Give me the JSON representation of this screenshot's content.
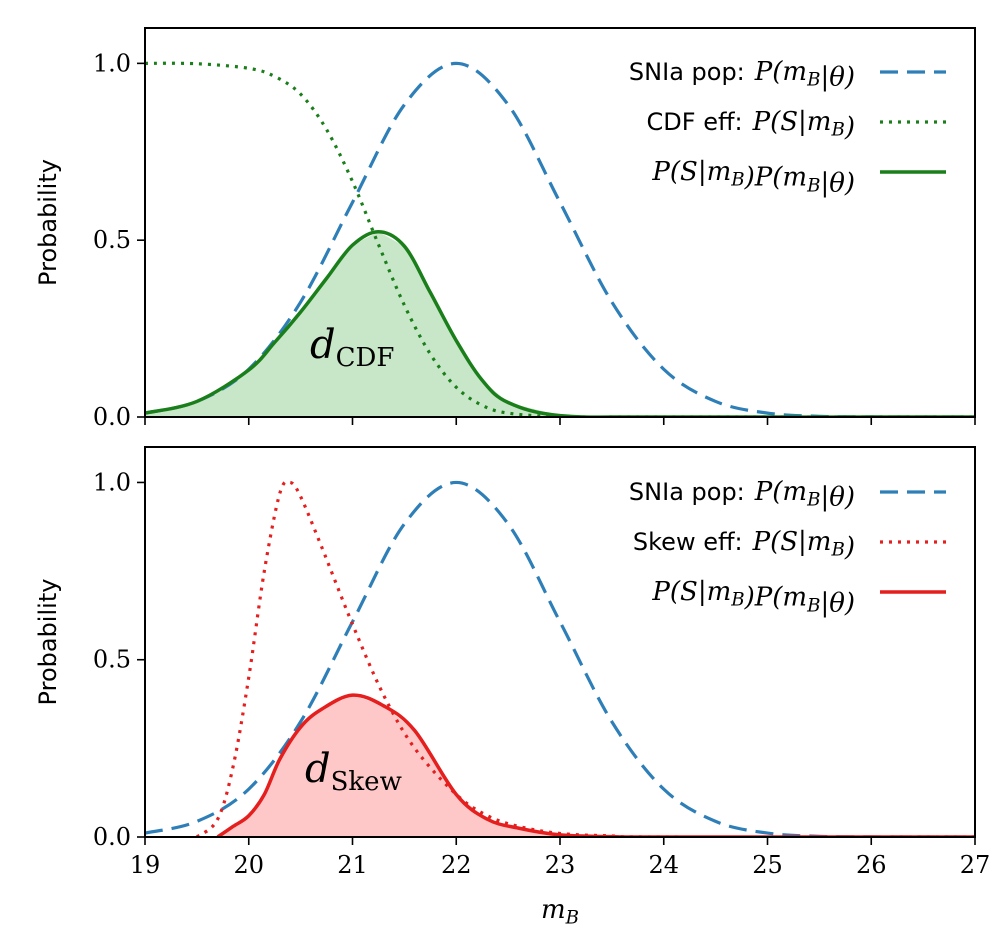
{
  "colors": {
    "population": "#2e7fb8",
    "cdf": "#1a7f1a",
    "cdf_fill": "#c8e6c8",
    "skew": "#e51e1e",
    "skew_fill": "#ffc8c8"
  },
  "chart_data": [
    {
      "type": "area",
      "panel": "top",
      "xlim": [
        19,
        27
      ],
      "ylim": [
        0,
        1.1
      ],
      "ylabel": "Probability",
      "yticks": [
        "0.0",
        "0.5",
        "1.0"
      ],
      "annotation": "d",
      "annotation_sub": "CDF",
      "legend": [
        {
          "series": "population",
          "text": "SNIa pop:",
          "math": "P(m_B|θ)",
          "style": "dashed"
        },
        {
          "series": "efficiency",
          "text": "CDF eff:",
          "math": "P(S|m_B)",
          "style": "dotted"
        },
        {
          "series": "product",
          "text": "",
          "math": "P(S|m_B)P(m_B|θ)",
          "style": "solid"
        }
      ],
      "series": [
        {
          "name": "population",
          "style": "dashed",
          "color": "population",
          "x": [
            19,
            19.5,
            20,
            20.5,
            21,
            21.5,
            22,
            22.5,
            23,
            23.5,
            24,
            24.5,
            25,
            25.5,
            26,
            27
          ],
          "y": [
            0.011,
            0.044,
            0.135,
            0.325,
            0.607,
            0.883,
            1.0,
            0.883,
            0.607,
            0.325,
            0.135,
            0.044,
            0.011,
            0.002,
            0.0003,
            0.0
          ]
        },
        {
          "name": "efficiency",
          "style": "dotted",
          "color": "cdf",
          "x": [
            19,
            19.5,
            20,
            20.25,
            20.5,
            20.75,
            21,
            21.25,
            21.5,
            21.75,
            22,
            22.25,
            22.5,
            23,
            24,
            27
          ],
          "y": [
            1.0,
            0.999,
            0.986,
            0.963,
            0.913,
            0.813,
            0.666,
            0.488,
            0.316,
            0.178,
            0.084,
            0.033,
            0.011,
            0.001,
            0.0,
            0.0
          ]
        },
        {
          "name": "product",
          "style": "solid",
          "color": "cdf",
          "fill": "cdf_fill",
          "x": [
            19,
            19.5,
            20,
            20.25,
            20.5,
            20.75,
            21,
            21.25,
            21.5,
            21.75,
            22,
            22.25,
            22.5,
            23,
            24,
            27
          ],
          "y": [
            0.011,
            0.044,
            0.133,
            0.211,
            0.297,
            0.392,
            0.486,
            0.524,
            0.483,
            0.352,
            0.216,
            0.104,
            0.041,
            0.004,
            0.0,
            0.0
          ]
        }
      ]
    },
    {
      "type": "area",
      "panel": "bottom",
      "xlim": [
        19,
        27
      ],
      "ylim": [
        0,
        1.1
      ],
      "xlabel": "m_B",
      "ylabel": "Probability",
      "yticks": [
        "0.0",
        "0.5",
        "1.0"
      ],
      "xticks": [
        "19",
        "20",
        "21",
        "22",
        "23",
        "24",
        "25",
        "26",
        "27"
      ],
      "annotation": "d",
      "annotation_sub": "Skew",
      "legend": [
        {
          "series": "population",
          "text": "SNIa pop:",
          "math": "P(m_B|θ)",
          "style": "dashed"
        },
        {
          "series": "efficiency",
          "text": "Skew eff:",
          "math": "P(S|m_B)",
          "style": "dotted"
        },
        {
          "series": "product",
          "text": "",
          "math": "P(S|m_B)P(m_B|θ)",
          "style": "solid"
        }
      ],
      "series": [
        {
          "name": "population",
          "style": "dashed",
          "color": "population",
          "x": [
            19,
            19.5,
            20,
            20.5,
            21,
            21.5,
            22,
            22.5,
            23,
            23.5,
            24,
            24.5,
            25,
            25.5,
            26,
            27
          ],
          "y": [
            0.011,
            0.044,
            0.135,
            0.325,
            0.607,
            0.883,
            1.0,
            0.883,
            0.607,
            0.325,
            0.135,
            0.044,
            0.011,
            0.002,
            0.0003,
            0.0
          ]
        },
        {
          "name": "efficiency",
          "style": "dotted",
          "color": "skew",
          "x": [
            19.5,
            19.7,
            19.85,
            20.0,
            20.15,
            20.3,
            20.4,
            20.5,
            20.7,
            21.0,
            21.3,
            21.6,
            22.0,
            22.3,
            22.6,
            23.0,
            23.5,
            24,
            27
          ],
          "y": [
            0.0,
            0.05,
            0.2,
            0.45,
            0.75,
            0.97,
            1.0,
            0.96,
            0.82,
            0.6,
            0.4,
            0.25,
            0.12,
            0.06,
            0.03,
            0.01,
            0.003,
            0.0,
            0.0
          ]
        },
        {
          "name": "product",
          "style": "solid",
          "color": "skew",
          "fill": "skew_fill",
          "x": [
            19.7,
            19.85,
            20.0,
            20.15,
            20.3,
            20.5,
            20.7,
            21.0,
            21.3,
            21.6,
            22.0,
            22.3,
            22.6,
            23.0,
            23.5,
            24,
            27
          ],
          "y": [
            0.0,
            0.03,
            0.06,
            0.12,
            0.22,
            0.31,
            0.36,
            0.4,
            0.37,
            0.3,
            0.12,
            0.05,
            0.025,
            0.006,
            0.001,
            0.0,
            0.0
          ]
        }
      ]
    }
  ]
}
